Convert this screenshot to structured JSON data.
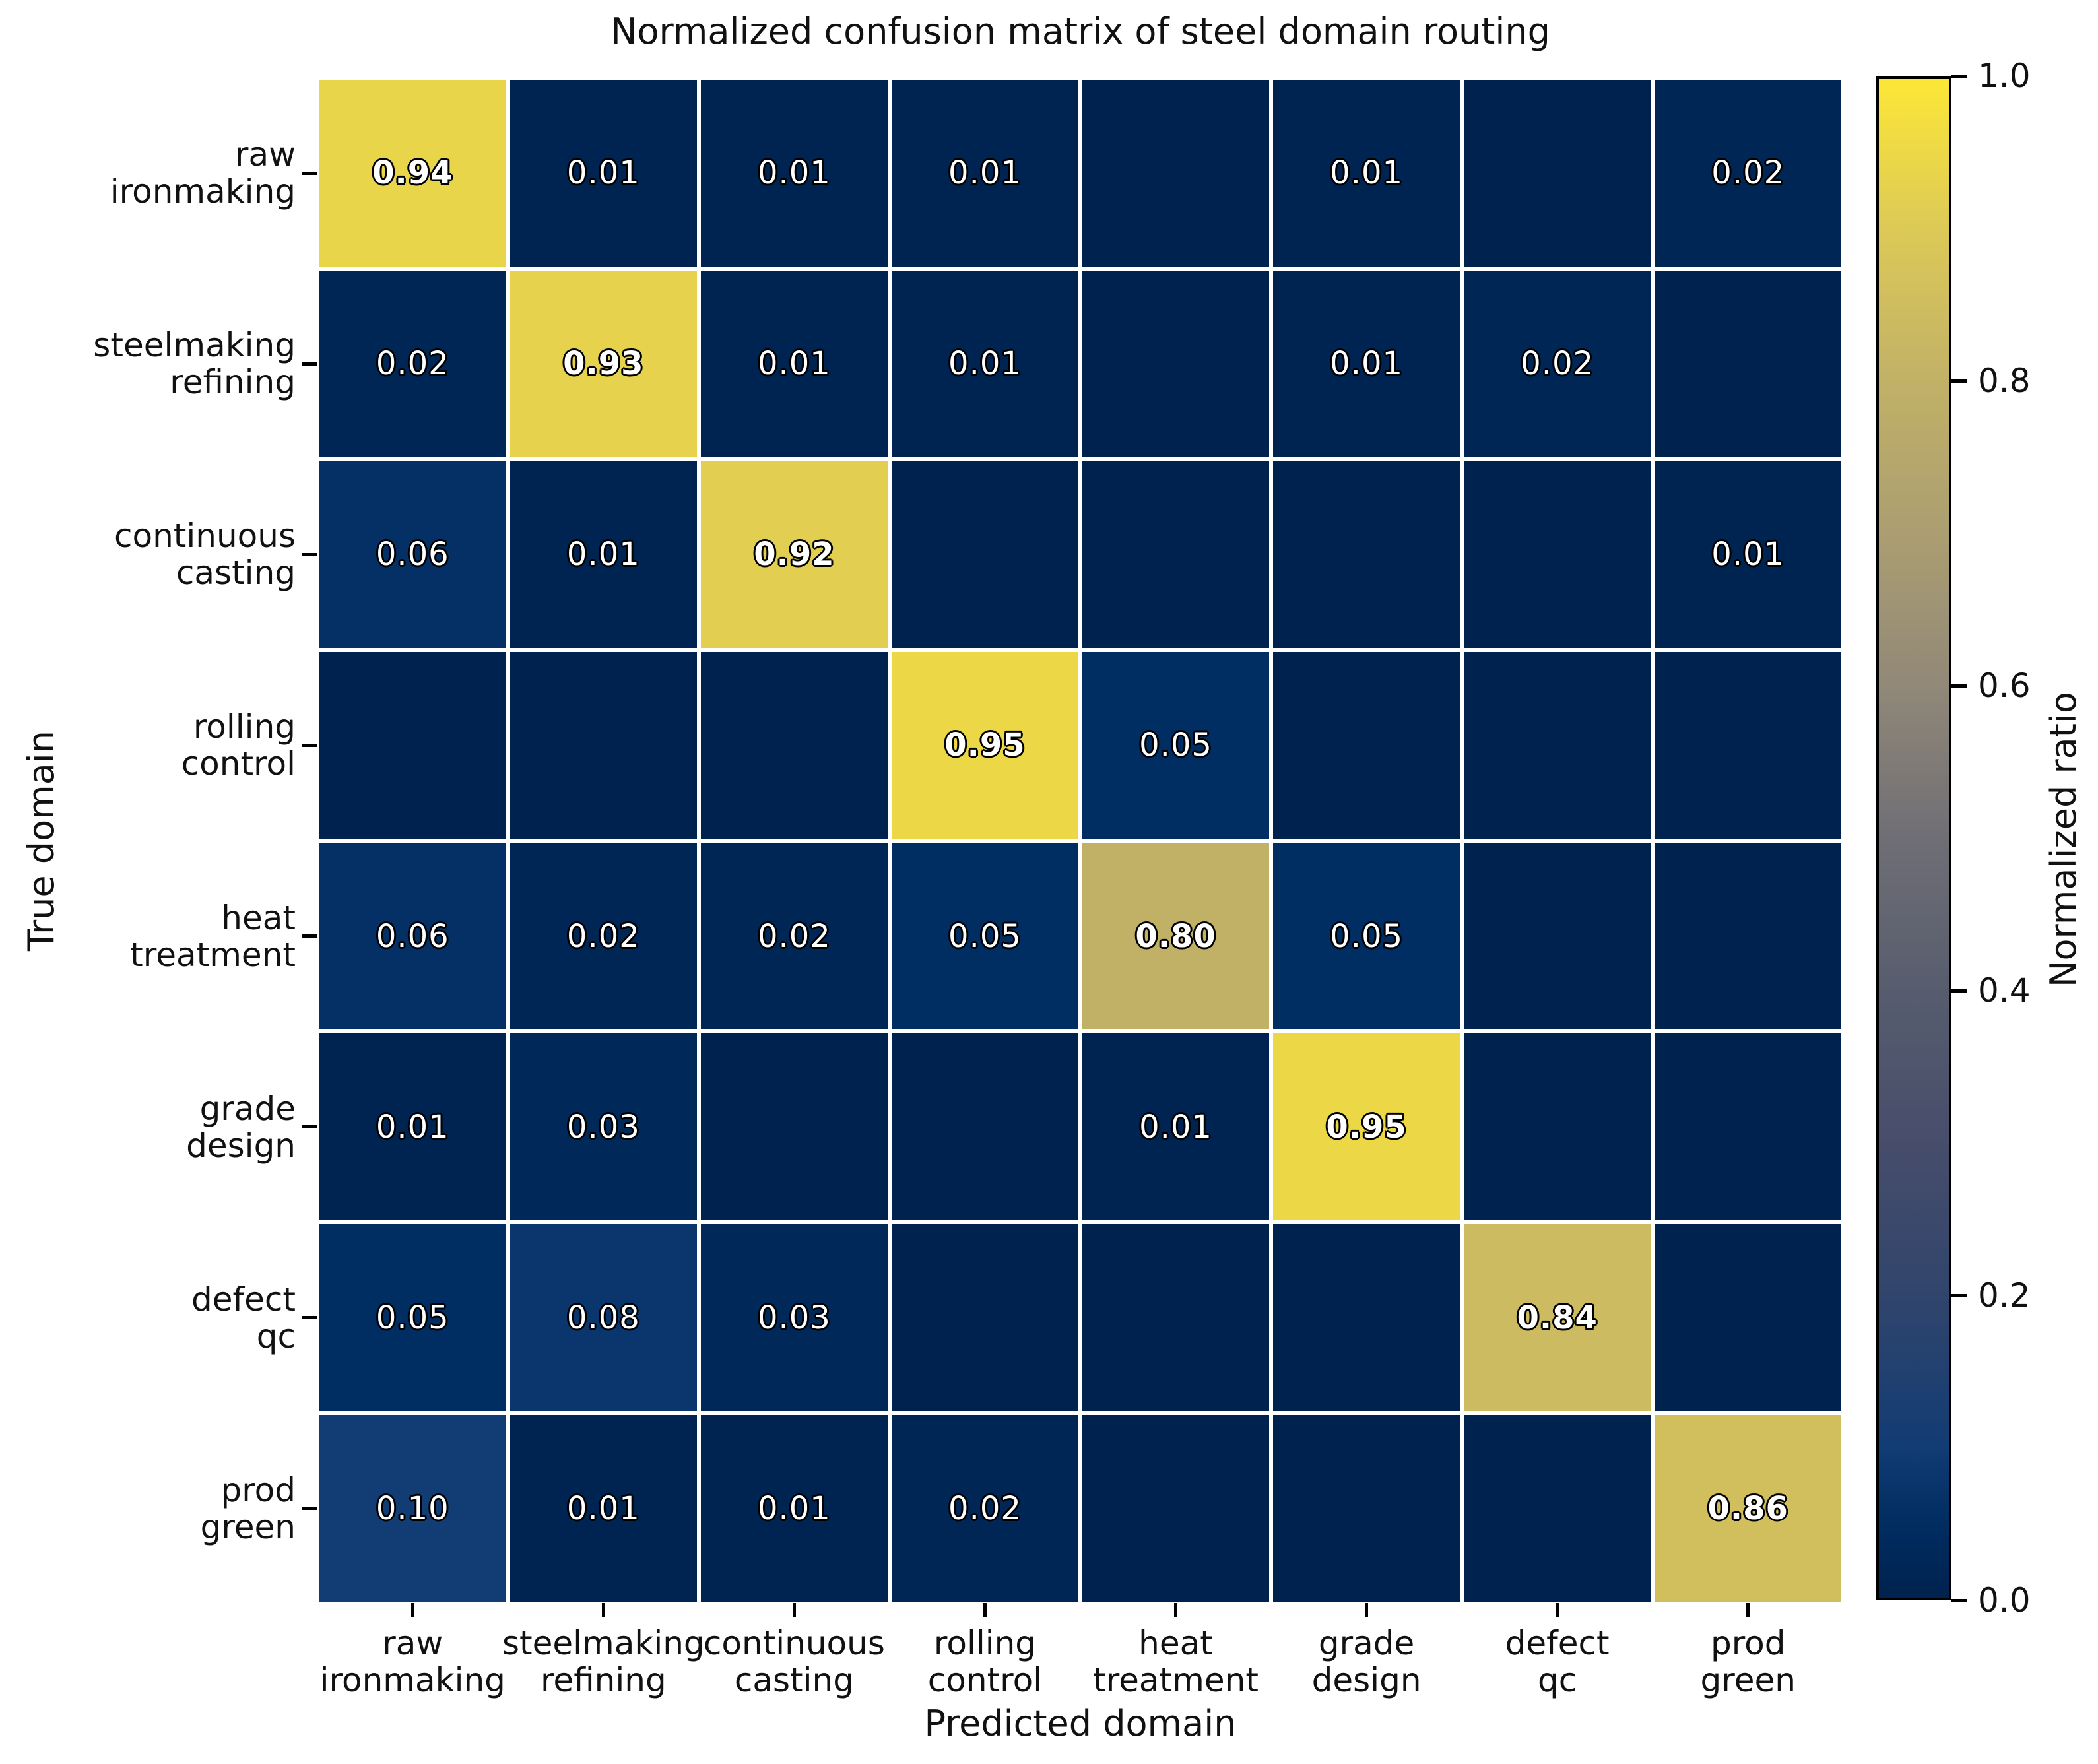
{
  "chart_data": {
    "type": "heatmap",
    "title": "Normalized confusion matrix of steel domain routing",
    "xlabel": "Predicted domain",
    "ylabel": "True domain",
    "categories": [
      "raw ironmaking",
      "steelmaking refining",
      "continuous casting",
      "rolling control",
      "heat treatment",
      "grade design",
      "defect qc",
      "prod green"
    ],
    "category_display": [
      [
        "raw",
        "ironmaking"
      ],
      [
        "steelmaking",
        "refining"
      ],
      [
        "continuous",
        "casting"
      ],
      [
        "rolling",
        "control"
      ],
      [
        "heat",
        "treatment"
      ],
      [
        "grade",
        "design"
      ],
      [
        "defect",
        "qc"
      ],
      [
        "prod",
        "green"
      ]
    ],
    "matrix": [
      [
        0.94,
        0.01,
        0.01,
        0.01,
        null,
        0.01,
        null,
        0.02
      ],
      [
        0.02,
        0.93,
        0.01,
        0.01,
        null,
        0.01,
        0.02,
        null
      ],
      [
        0.06,
        0.01,
        0.92,
        null,
        null,
        null,
        null,
        0.01
      ],
      [
        null,
        null,
        null,
        0.95,
        0.05,
        null,
        null,
        null
      ],
      [
        0.06,
        0.02,
        0.02,
        0.05,
        0.8,
        0.05,
        null,
        null
      ],
      [
        0.01,
        0.03,
        null,
        null,
        0.01,
        0.95,
        null,
        null
      ],
      [
        0.05,
        0.08,
        0.03,
        null,
        null,
        null,
        0.84,
        null
      ],
      [
        0.1,
        0.01,
        0.01,
        0.02,
        null,
        null,
        null,
        0.86
      ]
    ],
    "cell_labels": [
      [
        "0.94",
        "0.01",
        "0.01",
        "0.01",
        "",
        "0.01",
        "",
        "0.02"
      ],
      [
        "0.02",
        "0.93",
        "0.01",
        "0.01",
        "",
        "0.01",
        "0.02",
        ""
      ],
      [
        "0.06",
        "0.01",
        "0.92",
        "",
        "",
        "",
        "",
        "0.01"
      ],
      [
        "",
        "",
        "",
        "0.95",
        "0.05",
        "",
        "",
        ""
      ],
      [
        "0.06",
        "0.02",
        "0.02",
        "0.05",
        "0.80",
        "0.05",
        "",
        ""
      ],
      [
        "0.01",
        "0.03",
        "",
        "",
        "0.01",
        "0.95",
        "",
        ""
      ],
      [
        "0.05",
        "0.08",
        "0.03",
        "",
        "",
        "",
        "0.84",
        ""
      ],
      [
        "0.10",
        "0.01",
        "0.01",
        "0.02",
        "",
        "",
        "",
        "0.86"
      ]
    ],
    "value_range": [
      0.0,
      1.0
    ],
    "grid": {
      "line_color": "#ffffff",
      "line_width": 6.5
    },
    "colorbar": {
      "label": "Normalized ratio",
      "ticks": [
        "1.0",
        "0.8",
        "0.6",
        "0.4",
        "0.2",
        "0.0"
      ],
      "tick_values": [
        1.0,
        0.8,
        0.6,
        0.4,
        0.2,
        0.0
      ]
    },
    "colormap": {
      "name": "cividis",
      "stops": [
        [
          0.0,
          "#00224e"
        ],
        [
          0.05,
          "#002d62"
        ],
        [
          0.1,
          "#123c74"
        ],
        [
          0.2,
          "#31456c"
        ],
        [
          0.3,
          "#474d6b"
        ],
        [
          0.4,
          "#575d6e"
        ],
        [
          0.5,
          "#6f6e75"
        ],
        [
          0.6,
          "#918878"
        ],
        [
          0.7,
          "#ab9e71"
        ],
        [
          0.8,
          "#c1b167"
        ],
        [
          0.9,
          "#dcc957"
        ],
        [
          1.0,
          "#fce737"
        ]
      ]
    }
  }
}
